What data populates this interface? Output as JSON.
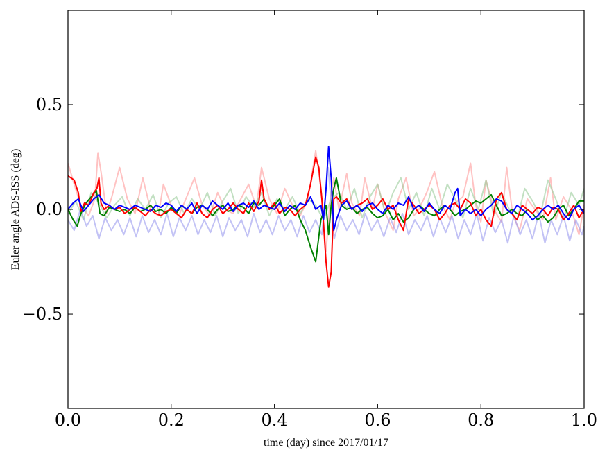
{
  "chart_data": {
    "type": "line",
    "xlabel": "time (day) since 2017/01/17",
    "ylabel": "Euler angle ADS-ISS (deg)",
    "xlim": [
      0.0,
      1.0
    ],
    "ylim": [
      -0.95,
      0.95
    ],
    "grid": false,
    "x_ticks": [
      0.0,
      0.2,
      0.4,
      0.6,
      0.8,
      1.0
    ],
    "x_tick_labels": [
      "0.0",
      "0.2",
      "0.4",
      "0.6",
      "0.8",
      "1.0"
    ],
    "y_ticks": [
      -0.5,
      0.0,
      0.5
    ],
    "y_tick_labels": [
      "−0.5",
      "0.0",
      "0.5"
    ],
    "series": [
      {
        "color": "#ff9999",
        "opacity": 0.6,
        "width": 2,
        "x": [
          0.0,
          0.012,
          0.025,
          0.04,
          0.052,
          0.058,
          0.064,
          0.075,
          0.085,
          0.1,
          0.115,
          0.13,
          0.145,
          0.16,
          0.175,
          0.185,
          0.2,
          0.215,
          0.23,
          0.245,
          0.26,
          0.275,
          0.29,
          0.305,
          0.32,
          0.335,
          0.35,
          0.365,
          0.375,
          0.39,
          0.405,
          0.42,
          0.435,
          0.45,
          0.465,
          0.48,
          0.49,
          0.5,
          0.508,
          0.515,
          0.525,
          0.54,
          0.55,
          0.565,
          0.575,
          0.59,
          0.6,
          0.615,
          0.63,
          0.64,
          0.655,
          0.67,
          0.68,
          0.695,
          0.71,
          0.725,
          0.74,
          0.75,
          0.765,
          0.78,
          0.79,
          0.8,
          0.81,
          0.825,
          0.84,
          0.85,
          0.862,
          0.875,
          0.89,
          0.905,
          0.92,
          0.935,
          0.945,
          0.96,
          0.975,
          0.99,
          1.0
        ],
        "y": [
          0.22,
          0.12,
          0.02,
          -0.03,
          0.05,
          0.27,
          0.18,
          -0.02,
          0.06,
          0.2,
          0.05,
          -0.02,
          0.15,
          0.0,
          -0.03,
          0.12,
          0.02,
          -0.03,
          0.06,
          0.15,
          0.02,
          -0.03,
          0.08,
          0.0,
          -0.02,
          0.05,
          0.12,
          0.01,
          0.2,
          0.05,
          -0.02,
          0.1,
          0.02,
          -0.03,
          0.05,
          0.28,
          0.1,
          -0.2,
          0.05,
          0.15,
          0.0,
          0.17,
          0.03,
          -0.03,
          0.15,
          0.0,
          0.12,
          -0.02,
          -0.1,
          0.05,
          0.15,
          -0.03,
          0.0,
          0.08,
          0.18,
          0.02,
          -0.05,
          0.03,
          0.06,
          0.22,
          0.02,
          -0.06,
          0.14,
          0.0,
          -0.06,
          0.2,
          -0.03,
          -0.1,
          0.05,
          0.0,
          -0.05,
          0.15,
          -0.05,
          0.06,
          0.0,
          -0.12,
          0.02
        ]
      },
      {
        "color": "#99cc99",
        "opacity": 0.6,
        "width": 2,
        "x": [
          0.0,
          0.015,
          0.03,
          0.045,
          0.06,
          0.075,
          0.09,
          0.105,
          0.12,
          0.135,
          0.15,
          0.165,
          0.18,
          0.195,
          0.21,
          0.225,
          0.24,
          0.255,
          0.27,
          0.285,
          0.3,
          0.315,
          0.33,
          0.345,
          0.36,
          0.375,
          0.39,
          0.405,
          0.42,
          0.435,
          0.45,
          0.465,
          0.48,
          0.495,
          0.51,
          0.525,
          0.54,
          0.555,
          0.57,
          0.585,
          0.6,
          0.615,
          0.63,
          0.645,
          0.66,
          0.675,
          0.69,
          0.705,
          0.72,
          0.735,
          0.75,
          0.765,
          0.78,
          0.795,
          0.81,
          0.825,
          0.84,
          0.855,
          0.87,
          0.885,
          0.9,
          0.915,
          0.93,
          0.945,
          0.96,
          0.975,
          0.99,
          1.0
        ],
        "y": [
          -0.02,
          0.04,
          -0.05,
          0.08,
          0.03,
          -0.04,
          0.02,
          0.06,
          -0.03,
          0.05,
          0.0,
          0.07,
          -0.04,
          0.03,
          0.06,
          -0.02,
          0.05,
          0.0,
          0.08,
          -0.03,
          0.04,
          0.1,
          -0.02,
          0.06,
          0.01,
          0.08,
          -0.03,
          0.05,
          0.0,
          0.06,
          -0.02,
          0.05,
          0.02,
          -0.05,
          0.05,
          0.08,
          0.0,
          0.1,
          -0.04,
          0.06,
          0.12,
          -0.02,
          0.08,
          0.15,
          0.0,
          0.08,
          -0.03,
          0.1,
          0.0,
          0.12,
          0.05,
          -0.04,
          0.1,
          0.0,
          0.14,
          -0.03,
          0.08,
          0.0,
          -0.05,
          0.1,
          0.04,
          -0.03,
          0.14,
          0.05,
          -0.05,
          0.08,
          0.02,
          0.1
        ]
      },
      {
        "color": "#9999ee",
        "opacity": 0.6,
        "width": 2,
        "x": [
          0.0,
          0.012,
          0.024,
          0.036,
          0.048,
          0.06,
          0.072,
          0.084,
          0.096,
          0.108,
          0.12,
          0.132,
          0.144,
          0.156,
          0.168,
          0.18,
          0.192,
          0.204,
          0.216,
          0.228,
          0.24,
          0.252,
          0.264,
          0.276,
          0.288,
          0.3,
          0.312,
          0.324,
          0.336,
          0.348,
          0.36,
          0.372,
          0.384,
          0.396,
          0.408,
          0.42,
          0.432,
          0.444,
          0.456,
          0.468,
          0.48,
          0.492,
          0.504,
          0.516,
          0.528,
          0.54,
          0.552,
          0.564,
          0.576,
          0.588,
          0.6,
          0.612,
          0.624,
          0.636,
          0.648,
          0.66,
          0.672,
          0.684,
          0.696,
          0.708,
          0.72,
          0.732,
          0.744,
          0.756,
          0.768,
          0.78,
          0.792,
          0.804,
          0.816,
          0.828,
          0.84,
          0.852,
          0.864,
          0.876,
          0.888,
          0.9,
          0.912,
          0.924,
          0.936,
          0.948,
          0.96,
          0.972,
          0.984,
          0.996,
          1.0
        ],
        "y": [
          -0.05,
          -0.1,
          0.0,
          -0.08,
          -0.03,
          -0.14,
          -0.04,
          -0.1,
          -0.05,
          -0.12,
          -0.04,
          -0.13,
          -0.03,
          -0.11,
          -0.05,
          -0.12,
          -0.02,
          -0.13,
          -0.04,
          -0.1,
          -0.03,
          -0.12,
          -0.05,
          -0.11,
          -0.03,
          -0.13,
          -0.04,
          -0.1,
          -0.05,
          -0.13,
          -0.02,
          -0.11,
          -0.05,
          -0.12,
          -0.03,
          -0.1,
          -0.05,
          -0.13,
          -0.03,
          -0.11,
          -0.05,
          -0.12,
          0.2,
          -0.14,
          -0.03,
          -0.1,
          -0.05,
          -0.12,
          -0.02,
          -0.1,
          -0.05,
          -0.13,
          -0.04,
          -0.11,
          -0.02,
          -0.12,
          -0.05,
          -0.1,
          -0.03,
          -0.13,
          -0.04,
          -0.11,
          -0.03,
          -0.14,
          -0.05,
          -0.12,
          -0.02,
          -0.15,
          -0.04,
          -0.11,
          -0.05,
          -0.16,
          -0.03,
          -0.12,
          -0.05,
          -0.14,
          -0.02,
          -0.16,
          -0.05,
          -0.12,
          -0.03,
          -0.15,
          -0.05,
          -0.12,
          -0.08
        ]
      },
      {
        "color": "#008000",
        "opacity": 1,
        "width": 2,
        "x": [
          0.0,
          0.01,
          0.018,
          0.025,
          0.035,
          0.045,
          0.055,
          0.062,
          0.07,
          0.08,
          0.09,
          0.1,
          0.11,
          0.12,
          0.13,
          0.14,
          0.15,
          0.16,
          0.17,
          0.18,
          0.19,
          0.2,
          0.21,
          0.22,
          0.23,
          0.24,
          0.25,
          0.26,
          0.27,
          0.28,
          0.29,
          0.3,
          0.31,
          0.32,
          0.33,
          0.34,
          0.35,
          0.36,
          0.37,
          0.38,
          0.39,
          0.4,
          0.41,
          0.42,
          0.43,
          0.44,
          0.45,
          0.46,
          0.47,
          0.48,
          0.49,
          0.5,
          0.505,
          0.51,
          0.515,
          0.52,
          0.53,
          0.54,
          0.55,
          0.56,
          0.57,
          0.58,
          0.59,
          0.6,
          0.61,
          0.62,
          0.63,
          0.64,
          0.65,
          0.66,
          0.67,
          0.68,
          0.69,
          0.7,
          0.71,
          0.72,
          0.73,
          0.74,
          0.75,
          0.76,
          0.77,
          0.78,
          0.79,
          0.8,
          0.81,
          0.82,
          0.83,
          0.84,
          0.85,
          0.86,
          0.87,
          0.88,
          0.89,
          0.9,
          0.91,
          0.92,
          0.93,
          0.94,
          0.95,
          0.96,
          0.97,
          0.98,
          0.99,
          1.0
        ],
        "y": [
          0.0,
          -0.05,
          -0.08,
          -0.02,
          0.03,
          0.06,
          0.09,
          -0.02,
          -0.03,
          0.01,
          0.0,
          -0.01,
          0.0,
          -0.02,
          0.01,
          -0.01,
          0.0,
          0.02,
          -0.01,
          0.0,
          -0.02,
          0.01,
          -0.02,
          0.02,
          0.0,
          -0.02,
          0.01,
          0.02,
          0.0,
          -0.03,
          0.0,
          0.02,
          -0.01,
          0.0,
          0.02,
          0.01,
          -0.02,
          0.03,
          0.02,
          0.05,
          0.0,
          0.02,
          0.05,
          -0.03,
          0.0,
          0.02,
          -0.05,
          -0.1,
          -0.18,
          -0.25,
          -0.05,
          0.02,
          -0.12,
          0.02,
          0.1,
          0.15,
          0.02,
          0.0,
          0.01,
          -0.02,
          0.0,
          0.01,
          -0.02,
          -0.04,
          -0.03,
          0.0,
          -0.05,
          -0.02,
          -0.06,
          -0.04,
          0.0,
          0.02,
          0.0,
          -0.02,
          -0.03,
          0.0,
          0.02,
          0.0,
          -0.03,
          -0.01,
          0.0,
          0.02,
          0.04,
          0.03,
          0.05,
          0.07,
          0.02,
          -0.03,
          -0.02,
          0.0,
          -0.02,
          -0.03,
          0.0,
          -0.02,
          -0.05,
          -0.03,
          -0.06,
          -0.04,
          0.0,
          0.02,
          -0.03,
          0.0,
          0.04,
          0.04
        ]
      },
      {
        "color": "#ff0000",
        "opacity": 1,
        "width": 2,
        "x": [
          0.0,
          0.012,
          0.02,
          0.025,
          0.032,
          0.04,
          0.05,
          0.056,
          0.06,
          0.064,
          0.07,
          0.08,
          0.09,
          0.1,
          0.11,
          0.12,
          0.13,
          0.14,
          0.15,
          0.16,
          0.17,
          0.18,
          0.19,
          0.2,
          0.21,
          0.22,
          0.23,
          0.24,
          0.25,
          0.26,
          0.27,
          0.28,
          0.29,
          0.3,
          0.31,
          0.32,
          0.33,
          0.34,
          0.35,
          0.36,
          0.37,
          0.375,
          0.38,
          0.39,
          0.4,
          0.41,
          0.42,
          0.43,
          0.44,
          0.45,
          0.46,
          0.47,
          0.48,
          0.486,
          0.492,
          0.5,
          0.505,
          0.51,
          0.515,
          0.52,
          0.53,
          0.54,
          0.55,
          0.56,
          0.57,
          0.58,
          0.59,
          0.6,
          0.61,
          0.62,
          0.63,
          0.64,
          0.65,
          0.66,
          0.67,
          0.68,
          0.69,
          0.7,
          0.71,
          0.72,
          0.73,
          0.74,
          0.75,
          0.76,
          0.77,
          0.78,
          0.79,
          0.8,
          0.81,
          0.82,
          0.83,
          0.84,
          0.85,
          0.86,
          0.87,
          0.88,
          0.89,
          0.9,
          0.91,
          0.92,
          0.93,
          0.94,
          0.95,
          0.96,
          0.97,
          0.98,
          0.99,
          1.0
        ],
        "y": [
          0.16,
          0.14,
          0.08,
          -0.01,
          0.03,
          0.02,
          0.08,
          0.1,
          0.15,
          0.03,
          0.0,
          0.02,
          0.0,
          0.01,
          -0.02,
          0.0,
          0.01,
          -0.01,
          -0.03,
          0.0,
          -0.02,
          -0.03,
          -0.01,
          0.0,
          -0.02,
          -0.04,
          0.0,
          -0.02,
          0.03,
          -0.02,
          -0.04,
          0.0,
          0.02,
          -0.02,
          0.0,
          0.03,
          0.0,
          -0.02,
          0.03,
          -0.01,
          0.04,
          0.14,
          0.05,
          0.0,
          0.03,
          -0.02,
          0.01,
          0.0,
          -0.03,
          0.0,
          0.02,
          0.12,
          0.25,
          0.2,
          0.05,
          -0.25,
          -0.37,
          -0.3,
          0.05,
          0.06,
          0.03,
          0.05,
          0.0,
          0.02,
          0.03,
          0.05,
          0.0,
          0.02,
          0.05,
          0.0,
          0.02,
          -0.05,
          -0.1,
          0.05,
          0.02,
          -0.02,
          0.0,
          0.02,
          0.0,
          -0.05,
          -0.02,
          0.02,
          0.03,
          0.0,
          0.05,
          0.03,
          -0.03,
          0.0,
          -0.05,
          -0.08,
          0.05,
          0.08,
          0.0,
          -0.02,
          -0.05,
          0.02,
          0.0,
          -0.02,
          0.01,
          0.0,
          -0.03,
          0.01,
          0.0,
          -0.05,
          -0.02,
          0.02,
          -0.04,
          0.0
        ]
      },
      {
        "color": "#0000ff",
        "opacity": 1,
        "width": 2,
        "x": [
          0.0,
          0.01,
          0.02,
          0.03,
          0.04,
          0.05,
          0.06,
          0.07,
          0.08,
          0.09,
          0.1,
          0.11,
          0.12,
          0.13,
          0.14,
          0.15,
          0.16,
          0.17,
          0.18,
          0.19,
          0.2,
          0.21,
          0.22,
          0.23,
          0.24,
          0.25,
          0.26,
          0.27,
          0.28,
          0.29,
          0.3,
          0.31,
          0.32,
          0.33,
          0.34,
          0.35,
          0.36,
          0.37,
          0.38,
          0.39,
          0.4,
          0.41,
          0.42,
          0.43,
          0.44,
          0.45,
          0.46,
          0.47,
          0.48,
          0.49,
          0.495,
          0.5,
          0.505,
          0.51,
          0.515,
          0.52,
          0.53,
          0.54,
          0.55,
          0.56,
          0.57,
          0.58,
          0.59,
          0.6,
          0.61,
          0.62,
          0.63,
          0.64,
          0.65,
          0.66,
          0.67,
          0.68,
          0.69,
          0.7,
          0.71,
          0.72,
          0.73,
          0.74,
          0.75,
          0.755,
          0.76,
          0.77,
          0.78,
          0.79,
          0.8,
          0.81,
          0.82,
          0.83,
          0.84,
          0.85,
          0.86,
          0.87,
          0.88,
          0.89,
          0.9,
          0.91,
          0.92,
          0.93,
          0.94,
          0.95,
          0.96,
          0.97,
          0.98,
          0.99,
          1.0
        ],
        "y": [
          0.0,
          0.03,
          0.05,
          -0.01,
          0.02,
          0.05,
          0.07,
          0.03,
          0.02,
          0.0,
          0.02,
          0.01,
          0.0,
          0.02,
          0.01,
          0.0,
          -0.01,
          0.02,
          0.01,
          0.03,
          0.02,
          -0.01,
          0.02,
          0.0,
          0.03,
          -0.02,
          0.02,
          0.0,
          0.04,
          0.02,
          0.0,
          0.03,
          -0.01,
          0.02,
          0.03,
          0.01,
          0.04,
          0.0,
          0.02,
          0.01,
          0.0,
          0.03,
          -0.01,
          0.02,
          0.0,
          0.03,
          0.02,
          0.06,
          0.0,
          0.02,
          -0.05,
          0.1,
          0.3,
          0.15,
          -0.1,
          -0.05,
          0.02,
          0.04,
          0.0,
          0.02,
          -0.01,
          0.02,
          0.03,
          0.0,
          -0.02,
          0.02,
          0.0,
          0.03,
          0.02,
          0.06,
          0.0,
          0.02,
          -0.01,
          0.03,
          0.0,
          -0.02,
          0.02,
          0.0,
          0.08,
          0.1,
          -0.03,
          0.0,
          -0.02,
          0.0,
          -0.03,
          0.0,
          0.02,
          0.05,
          0.04,
          0.0,
          -0.02,
          0.02,
          0.0,
          -0.02,
          -0.05,
          -0.03,
          0.0,
          0.02,
          0.0,
          0.02,
          -0.02,
          -0.05,
          0.0,
          0.02,
          -0.02
        ]
      }
    ]
  }
}
